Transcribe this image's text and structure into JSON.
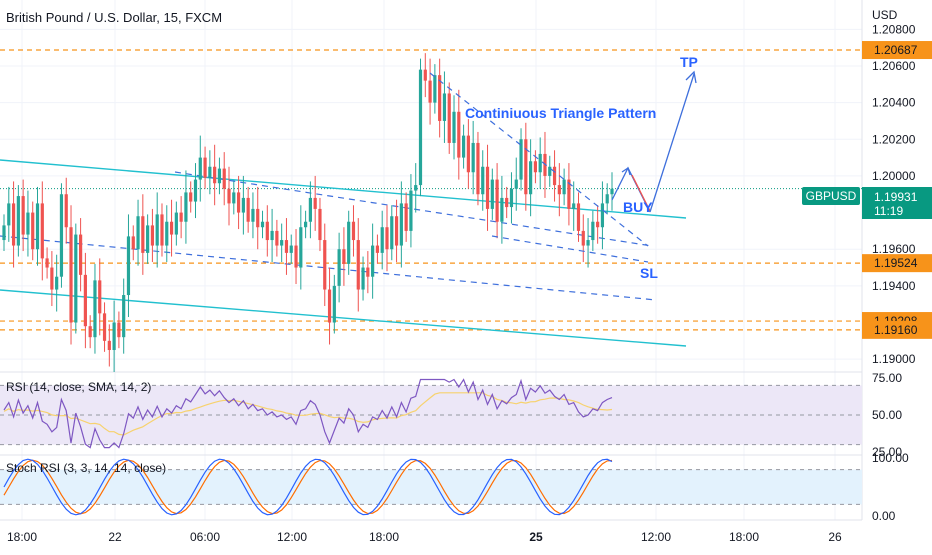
{
  "header": {
    "title": "British Pound / U.S. Dollar, 15, FXCM",
    "currency": "USD"
  },
  "colors": {
    "up": "#26a69a",
    "down": "#ef5350",
    "level": "#f7931a",
    "channel": "#22c0cf",
    "pattern": "#3e6fdc",
    "label": "#2962ff",
    "rsi": "#7e57c2",
    "rsi_ma": "#f7d26e",
    "stoch_k": "#2962ff",
    "stoch_d": "#ff6d00",
    "band": "#ece7f7",
    "stoch_band": "#e3f2fd",
    "ticker_bg": "#089981",
    "lastline": "#089981"
  },
  "chart_data": [
    {
      "type": "candlestick",
      "symbol": "GBPUSD",
      "interval": "15",
      "ylim": [
        1.1893,
        1.2096
      ],
      "y_ticks": [
        "1.19000",
        "1.19400",
        "1.19600",
        "1.20000",
        "1.20200",
        "1.20400",
        "1.20600",
        "1.20800"
      ],
      "x_ticks": [
        "18:00",
        "22",
        "06:00",
        "12:00",
        "18:00",
        "25",
        "12:00",
        "18:00",
        "26"
      ],
      "x_ticks_bold": "25",
      "last_price": "1.19931",
      "countdown": "11:19",
      "price_levels": [
        {
          "value": "1.20687",
          "label": "TP"
        },
        {
          "value": "1.19524",
          "label": "SL"
        },
        {
          "value": "1.19208",
          "label": ""
        },
        {
          "value": "1.19160",
          "label": ""
        }
      ],
      "pattern_name": "Continiuous Triangle Pattern",
      "buy_label": "BUY",
      "tp_label": "TP",
      "sl_label": "SL",
      "trend_points": [
        [
          1.1973,
          1.1985,
          1.1962,
          1.1989,
          1.1968,
          1.198,
          1.196,
          1.1985,
          1.1955,
          1.195,
          1.1938,
          1.1945,
          1.199,
          1.1972,
          1.192,
          1.1968,
          1.1946,
          1.1918,
          1.1912,
          1.1943,
          1.1925,
          1.191
        ],
        [
          1.1905,
          1.192,
          1.1912,
          1.1935,
          1.1967,
          1.196,
          1.1978,
          1.1958,
          1.1973,
          1.1962,
          1.1979,
          1.1962,
          1.1975,
          1.1968,
          1.198,
          1.1975,
          1.1991,
          1.1986,
          1.1998,
          1.201,
          1.1999,
          1.2005
        ],
        [
          1.1996,
          1.2004,
          1.1993,
          1.1985,
          1.1991,
          1.198,
          1.1988,
          1.1975,
          1.1982,
          1.1972,
          1.1975,
          1.1965,
          1.197,
          1.1962,
          1.1965,
          1.1958,
          1.1962,
          1.195,
          1.1972,
          1.1975,
          1.1988,
          1.1982
        ],
        [
          1.1965,
          1.1938,
          1.192,
          1.194,
          1.196,
          1.1952,
          1.1975,
          1.1965,
          1.1938,
          1.195,
          1.1945,
          1.1962,
          1.1958,
          1.1972,
          1.196,
          1.1978,
          1.1962,
          1.1985,
          1.197,
          1.1992,
          1.1995,
          1.2058
        ],
        [
          1.2052,
          1.204,
          1.2055,
          1.203,
          1.2045,
          1.2018,
          1.2035,
          1.201,
          1.2022,
          1.2002,
          1.2018,
          1.199,
          1.2005,
          1.1982,
          1.1998,
          1.1975,
          1.1988,
          1.1983,
          1.1993,
          1.1998,
          1.202,
          1.199
        ],
        [
          1.2008,
          1.2002,
          1.2012,
          1.2,
          1.2005,
          1.1995,
          1.199,
          1.1998,
          1.1982,
          1.1985,
          1.197,
          1.1962,
          1.1965,
          1.1975,
          1.1972,
          1.1985,
          1.199,
          1.1993
        ]
      ]
    },
    {
      "type": "line",
      "name": "RSI (14, close, SMA, 14, 2)",
      "ylim": [
        25,
        75
      ],
      "y_ticks": [
        "75.00",
        "50.00",
        "25.00"
      ],
      "guides": [
        70,
        50,
        30
      ]
    },
    {
      "type": "line",
      "name": "Stoch RSI (3, 3, 14, 14, close)",
      "ylim": [
        0,
        100
      ],
      "y_ticks": [
        "100.00",
        "0.00"
      ],
      "guides": [
        80,
        20
      ]
    }
  ]
}
